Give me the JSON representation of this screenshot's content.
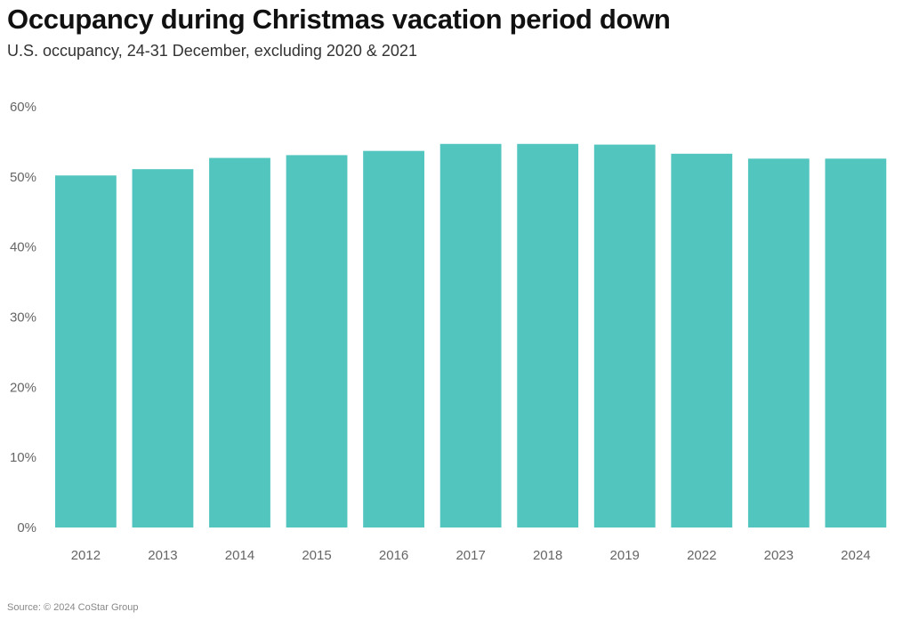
{
  "chart_data": {
    "type": "bar",
    "title": "Occupancy during Christmas vacation period down",
    "subtitle": "U.S. occupancy, 24-31 December, excluding 2020 & 2021",
    "categories": [
      "2012",
      "2013",
      "2014",
      "2015",
      "2016",
      "2017",
      "2018",
      "2019",
      "2022",
      "2023",
      "2024"
    ],
    "values": [
      50.2,
      51.1,
      52.7,
      53.1,
      53.7,
      54.7,
      54.7,
      54.6,
      53.3,
      52.6,
      52.6
    ],
    "y_ticks": [
      "0%",
      "10%",
      "20%",
      "30%",
      "40%",
      "50%",
      "60%"
    ],
    "ylim": [
      0,
      60
    ],
    "xlabel": "",
    "ylabel": "",
    "grid": false,
    "legend": "none",
    "bar_color": "#52c5bf",
    "source": "Source: © 2024 CoStar Group"
  }
}
